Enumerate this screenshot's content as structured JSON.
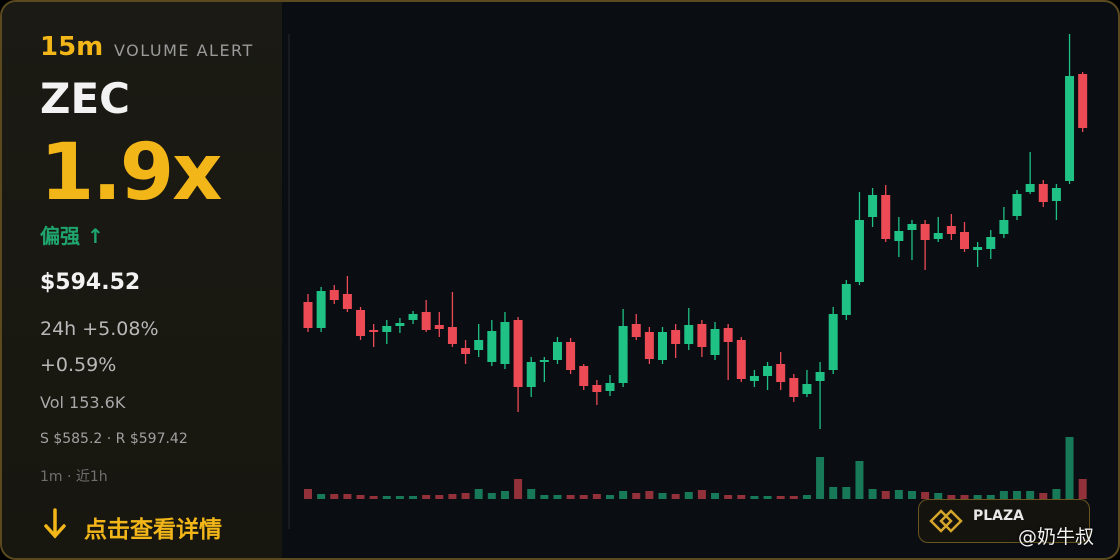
{
  "panel": {
    "interval": "15m",
    "alert": "VOLUME ALERT",
    "symbol": "ZEC",
    "ratio": "1.9x",
    "bias": "偏强 ↑",
    "price": "$594.52",
    "change_24h": "24h +5.08%",
    "change": "+0.59%",
    "volume": "Vol 153.6K",
    "levels": "S $585.2 · R $597.42",
    "timeframe": "1m · 近1h",
    "cta": "点击查看详情"
  },
  "badge": {
    "name": "PLAZA"
  },
  "watermark": "@奶牛叔",
  "chart_data": {
    "type": "candlestick",
    "up_color": "#1fc185",
    "down_color": "#ec4a55",
    "ylim": [
      0,
      500
    ],
    "volume_lim": [
      0,
      70
    ],
    "open": [
      200,
      174,
      212,
      208,
      192,
      172,
      170,
      176,
      182,
      190,
      177,
      175,
      154,
      152,
      140,
      138,
      182,
      115,
      140,
      142,
      160,
      136,
      117,
      111,
      119,
      178,
      170,
      142,
      172,
      158,
      178,
      147,
      174,
      162,
      121,
      126,
      138,
      124,
      108,
      121,
      132,
      187,
      220,
      285,
      307,
      261,
      272,
      278,
      263,
      276,
      270,
      252,
      253,
      268,
      286,
      310,
      318,
      301,
      321,
      428
    ],
    "high": [
      208,
      215,
      217,
      226,
      195,
      178,
      182,
      184,
      191,
      202,
      190,
      210,
      162,
      178,
      182,
      190,
      185,
      145,
      145,
      165,
      164,
      138,
      122,
      127,
      193,
      188,
      175,
      175,
      178,
      194,
      182,
      180,
      178,
      165,
      132,
      140,
      150,
      128,
      132,
      140,
      195,
      222,
      310,
      314,
      317,
      285,
      282,
      282,
      285,
      288,
      280,
      260,
      272,
      295,
      312,
      350,
      322,
      318,
      468,
      430
    ],
    "low": [
      170,
      170,
      198,
      190,
      162,
      155,
      158,
      169,
      178,
      170,
      165,
      155,
      138,
      145,
      136,
      133,
      90,
      105,
      120,
      138,
      128,
      112,
      97,
      106,
      115,
      162,
      138,
      138,
      144,
      152,
      145,
      142,
      122,
      120,
      115,
      112,
      112,
      100,
      105,
      73,
      128,
      182,
      217,
      275,
      260,
      245,
      242,
      232,
      260,
      262,
      250,
      235,
      243,
      264,
      282,
      308,
      295,
      282,
      318,
      370
    ],
    "close": [
      174,
      211,
      202,
      193,
      166,
      170,
      176,
      179,
      188,
      172,
      173,
      158,
      148,
      162,
      171,
      180,
      115,
      140,
      142,
      160,
      132,
      116,
      110,
      119,
      176,
      165,
      143,
      170,
      158,
      177,
      155,
      173,
      160,
      123,
      126,
      136,
      120,
      105,
      118,
      130,
      188,
      218,
      282,
      307,
      263,
      271,
      278,
      262,
      269,
      268,
      253,
      255,
      265,
      282,
      308,
      318,
      300,
      314,
      426,
      374
    ],
    "volume": [
      10,
      5,
      5,
      5,
      4,
      3,
      3,
      3,
      3,
      4,
      4,
      5,
      6,
      10,
      6,
      8,
      20,
      10,
      4,
      4,
      4,
      4,
      5,
      4,
      8,
      6,
      8,
      6,
      5,
      7,
      9,
      6,
      4,
      4,
      3,
      3,
      3,
      3,
      4,
      42,
      12,
      12,
      38,
      10,
      8,
      9,
      8,
      7,
      6,
      4,
      4,
      4,
      4,
      8,
      8,
      8,
      6,
      10,
      62,
      20
    ]
  }
}
